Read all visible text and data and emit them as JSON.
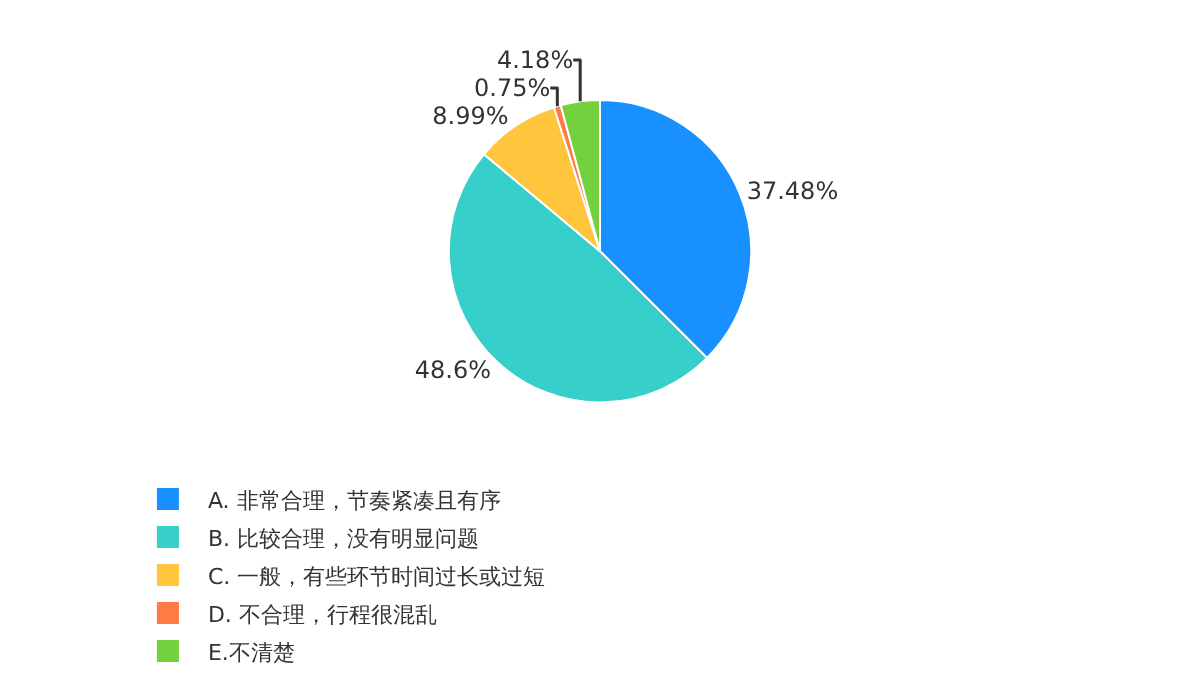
{
  "chart_data": {
    "type": "pie",
    "categories": [
      "A. 非常合理，节奏紧凑且有序",
      "B. 比较合理，没有明显问题",
      "C. 一般，有些环节时间过长或过短",
      "D. 不合理，行程很混乱",
      "E.不清楚"
    ],
    "values": [
      37.48,
      48.6,
      8.99,
      0.75,
      4.18
    ],
    "value_labels": [
      "37.48%",
      "48.6%",
      "8.99%",
      "0.75%",
      "4.18%"
    ],
    "colors": [
      "#1890ff",
      "#36cfca",
      "#ffc53d",
      "#ff7a45",
      "#73d13d"
    ],
    "legend": "bottom"
  }
}
